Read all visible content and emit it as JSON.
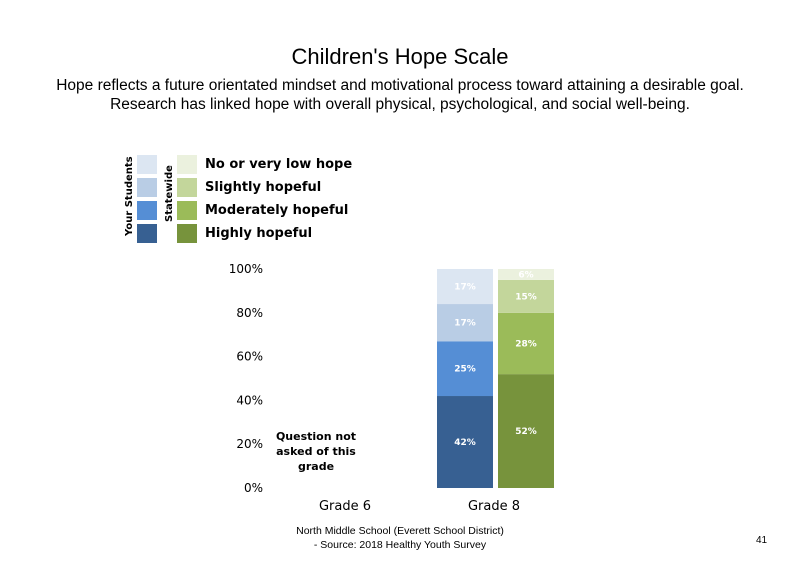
{
  "title": "Children's Hope Scale",
  "subtitle_lines": [
    "Hope reflects a future orientated mindset and motivational process toward attaining a desirable goal.",
    "Research has linked hope with overall physical, psychological, and social well-being."
  ],
  "legend": {
    "group_labels": [
      "Your Students",
      "Statewide"
    ],
    "entries": [
      "No or very low hope",
      "Slightly hopeful",
      "Moderately hopeful",
      "Highly hopeful"
    ],
    "colors_students": [
      "#dce6f2",
      "#b9cde5",
      "#558ed5",
      "#376092"
    ],
    "colors_statewide": [
      "#ebf1de",
      "#c3d69b",
      "#9bbb59",
      "#77933c"
    ]
  },
  "note": "Question not asked of this grade",
  "source_lines": [
    "North Middle School (Everett School District)",
    "- Source: 2018 Healthy Youth Survey"
  ],
  "page_number": "41",
  "chart_data": {
    "type": "bar",
    "stacked": true,
    "categories": [
      "Grade 6",
      "Grade 8"
    ],
    "y_ticks": [
      "0%",
      "20%",
      "40%",
      "60%",
      "80%",
      "100%"
    ],
    "ylim": [
      0,
      100
    ],
    "series": [
      {
        "name": "Highly hopeful",
        "your_students": [
          null,
          42
        ],
        "statewide": [
          null,
          52
        ]
      },
      {
        "name": "Moderately hopeful",
        "your_students": [
          null,
          25
        ],
        "statewide": [
          null,
          28
        ]
      },
      {
        "name": "Slightly hopeful",
        "your_students": [
          null,
          17
        ],
        "statewide": [
          null,
          15
        ]
      },
      {
        "name": "No or very low hope",
        "your_students": [
          null,
          17
        ],
        "statewide": [
          null,
          6
        ]
      }
    ],
    "data_labels": {
      "your_students": [
        "42%",
        "25%",
        "17%",
        "17%"
      ],
      "statewide": [
        "52%",
        "28%",
        "15%",
        "6%"
      ]
    }
  }
}
